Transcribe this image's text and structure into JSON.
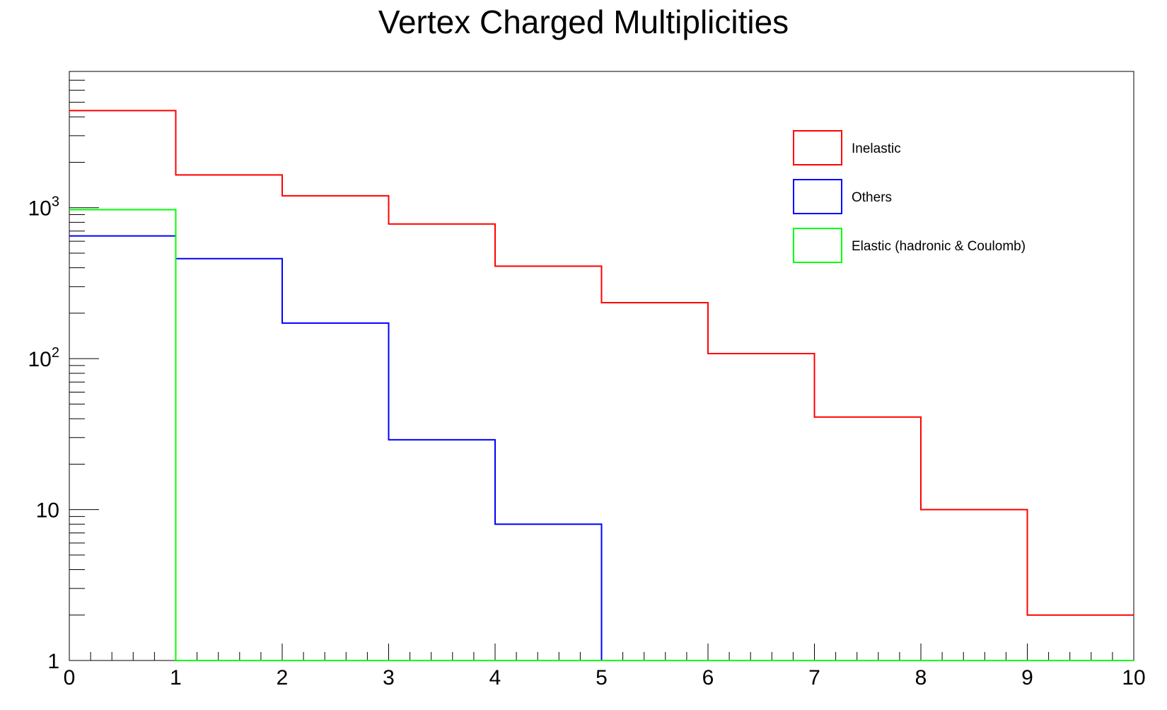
{
  "chart_data": {
    "type": "histogram",
    "title": "Vertex Charged Multiplicities",
    "xlabel": "",
    "ylabel": "",
    "xlim": [
      0,
      10
    ],
    "ylim": [
      1,
      8000
    ],
    "y_scale": "log",
    "x_ticks": [
      "0",
      "1",
      "2",
      "3",
      "4",
      "5",
      "6",
      "7",
      "8",
      "9",
      "10"
    ],
    "y_ticks": [
      {
        "value": 1,
        "base": "1",
        "exp": ""
      },
      {
        "value": 10,
        "base": "10",
        "exp": ""
      },
      {
        "value": 100,
        "base": "10",
        "exp": "2"
      },
      {
        "value": 1000,
        "base": "10",
        "exp": "3"
      }
    ],
    "bin_edges": [
      0,
      1,
      2,
      3,
      4,
      5,
      6,
      7,
      8,
      9,
      10
    ],
    "series": [
      {
        "name": "Inelastic",
        "color": "#ff0000",
        "values": [
          4400,
          1650,
          1200,
          780,
          410,
          235,
          108,
          41,
          10,
          2
        ]
      },
      {
        "name": "Others",
        "color": "#0000ff",
        "values": [
          650,
          460,
          172,
          29,
          8,
          1,
          1,
          1,
          1,
          1
        ]
      },
      {
        "name": "Elastic (hadronic & Coulomb)",
        "color": "#00ff00",
        "values": [
          970,
          1,
          1,
          1,
          1,
          0,
          0,
          0,
          0,
          0
        ]
      }
    ],
    "legend": {
      "position": "top-right",
      "entries": [
        "Inelastic",
        "Others",
        "Elastic (hadronic & Coulomb)"
      ]
    },
    "grid": false
  }
}
